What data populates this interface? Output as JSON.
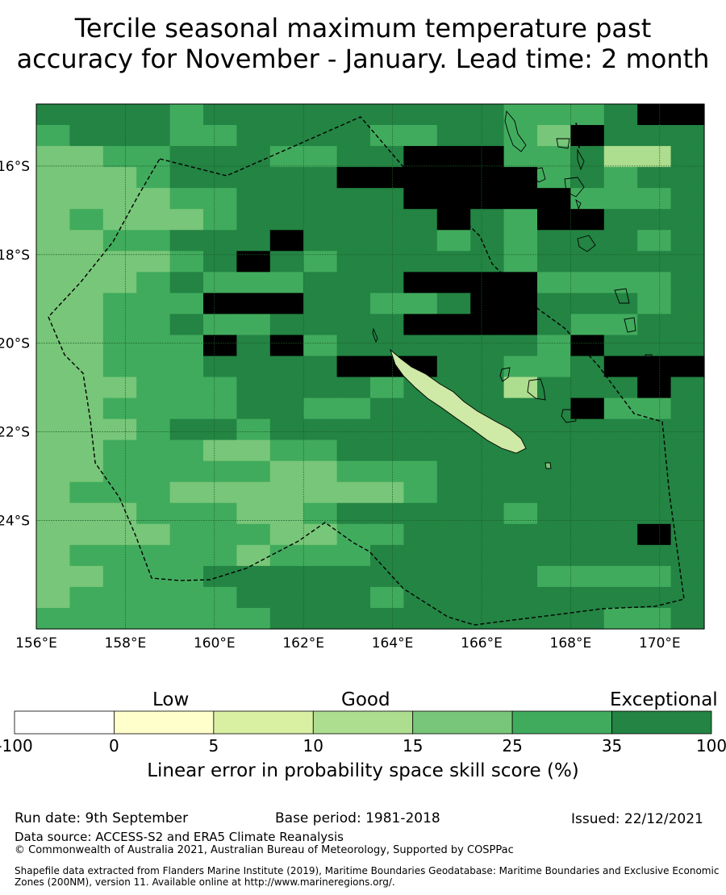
{
  "title": {
    "line1": "Tercile seasonal maximum temperature past",
    "line2": "accuracy for November - January. Lead time: 2 month"
  },
  "map": {
    "lon_range": [
      156.0,
      171.0
    ],
    "lat_range": [
      -26.45,
      -14.6
    ],
    "cell_size_deg": 0.833,
    "lon_ticks": [
      "156°E",
      "158°E",
      "160°E",
      "162°E",
      "164°E",
      "166°E",
      "168°E",
      "170°E"
    ],
    "lat_ticks": [
      "16°S",
      "18°S",
      "20°S",
      "22°S",
      "24°S"
    ],
    "grid_rows": [
      "66665666666666555677",
      "56665566665566547666",
      "44556665566777556336",
      "44456666677777756566",
      "44445566666777775556",
      "45444566666676577666",
      "44556667666656566656",
      "44445676566666566666",
      "44456555666777755556",
      "44555777665567766656",
      "44556556666777765566",
      "44555767566666657666",
      "44555666677766556777",
      "44455566665666366676",
      "44555566556666667556",
      "44456656666666666666",
      "44555445566666666666",
      "44555554455566666666",
      "45554444444566666666",
      "44455544566666566666",
      "44445554455666666676",
      "45555545556666666666",
      "44555666666666655556",
      "45555566665666666666",
      "55555556666666666556"
    ]
  },
  "legend": {
    "category_labels": [
      "Low",
      "Good",
      "Exceptional"
    ],
    "tick_labels": [
      "-100",
      "0",
      "5",
      "10",
      "15",
      "25",
      "35",
      "100"
    ],
    "colors": [
      "#ffffff",
      "#ffffcc",
      "#d9f0a3",
      "#addd8e",
      "#78c679",
      "#41ab5d",
      "#238443"
    ],
    "title": "Linear error in probability space skill score (%)"
  },
  "footer": {
    "run_date": "Run date: 9th September",
    "base_period": "Base period: 1981-2018",
    "issued": "Issued: 22/12/2021",
    "data_source": "Data source: ACCESS-S2 and ERA5 Climate Reanalysis",
    "copyright": "© Commonwealth of Australia 2021, Australian Bureau of Meteorology, Supported by COSPPac",
    "shapefile": "Shapefile data extracted from Flanders Marine Institute (2019), Maritime Boundaries Geodatabase: Maritime Boundaries and Exclusive Economic Zones (200NM), version 11. Available online at http://www.marineregions.org/."
  }
}
